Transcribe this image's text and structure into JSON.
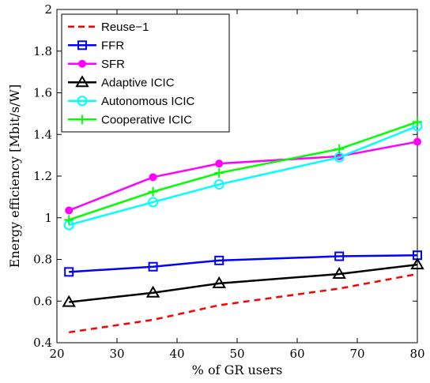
{
  "chart_data": {
    "type": "line",
    "xlabel": "% of GR users",
    "ylabel": "Energy efficiency  [Mbit/s/W]",
    "xlim": [
      20,
      80
    ],
    "ylim": [
      0.4,
      2
    ],
    "xticks": [
      20,
      30,
      40,
      50,
      60,
      70,
      80
    ],
    "yticks": [
      0.4,
      0.6,
      0.8,
      1,
      1.2,
      1.4,
      1.6,
      1.8,
      2
    ],
    "xtick_labels": [
      "20",
      "30",
      "40",
      "50",
      "60",
      "70",
      "80"
    ],
    "ytick_labels": [
      "0.4",
      "0.6",
      "0.8",
      "1",
      "1.2",
      "1.4",
      "1.6",
      "1.8",
      "2"
    ],
    "grid": false,
    "legend_position": "top-left",
    "series": [
      {
        "name": "Reuse−1",
        "color": "#ff0000",
        "dash": "dashed",
        "marker": "none",
        "x": [
          22,
          36,
          47,
          67,
          80
        ],
        "y": [
          0.45,
          0.51,
          0.58,
          0.66,
          0.73
        ]
      },
      {
        "name": "FFR",
        "color": "#0000ff",
        "dash": "solid",
        "marker": "square",
        "x": [
          22,
          36,
          47,
          67,
          80
        ],
        "y": [
          0.74,
          0.765,
          0.795,
          0.815,
          0.82
        ]
      },
      {
        "name": "SFR",
        "color": "#ff00ff",
        "dash": "solid",
        "marker": "dot",
        "x": [
          22,
          36,
          47,
          67,
          80
        ],
        "y": [
          1.035,
          1.195,
          1.26,
          1.295,
          1.365
        ]
      },
      {
        "name": "Adaptive ICIC",
        "color": "#000000",
        "dash": "solid",
        "marker": "triangle",
        "x": [
          22,
          36,
          47,
          67,
          80
        ],
        "y": [
          0.595,
          0.64,
          0.685,
          0.73,
          0.775
        ]
      },
      {
        "name": "Autonomous ICIC",
        "color": "#00ffff",
        "dash": "solid",
        "marker": "circle",
        "x": [
          22,
          36,
          47,
          67,
          80
        ],
        "y": [
          0.965,
          1.075,
          1.16,
          1.29,
          1.44
        ]
      },
      {
        "name": "Cooperative ICIC",
        "color": "#00ff00",
        "dash": "solid",
        "marker": "plus",
        "x": [
          22,
          36,
          47,
          67,
          80
        ],
        "y": [
          0.99,
          1.125,
          1.215,
          1.33,
          1.46
        ]
      }
    ]
  }
}
